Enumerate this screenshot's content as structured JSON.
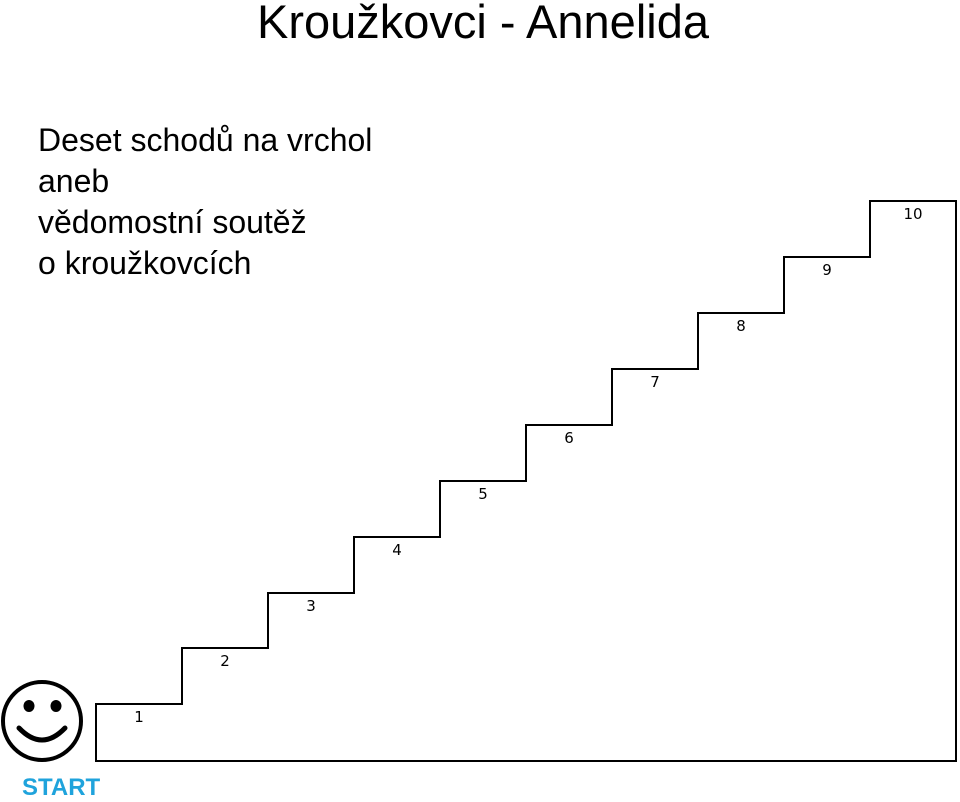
{
  "title": "Kroužkovci - Annelida",
  "subtitle_lines": [
    "Deset schodů na vrchol",
    "aneb",
    "vědomostní soutěž",
    "o kroužkovcích"
  ],
  "steps": [
    "1",
    "2",
    "3",
    "4",
    "5",
    "6",
    "7",
    "8",
    "9",
    "10"
  ],
  "start_label": "START",
  "smiley_icon": "smiley-face-icon",
  "colors": {
    "start": "#1fa3dc",
    "lines": "#000000"
  }
}
